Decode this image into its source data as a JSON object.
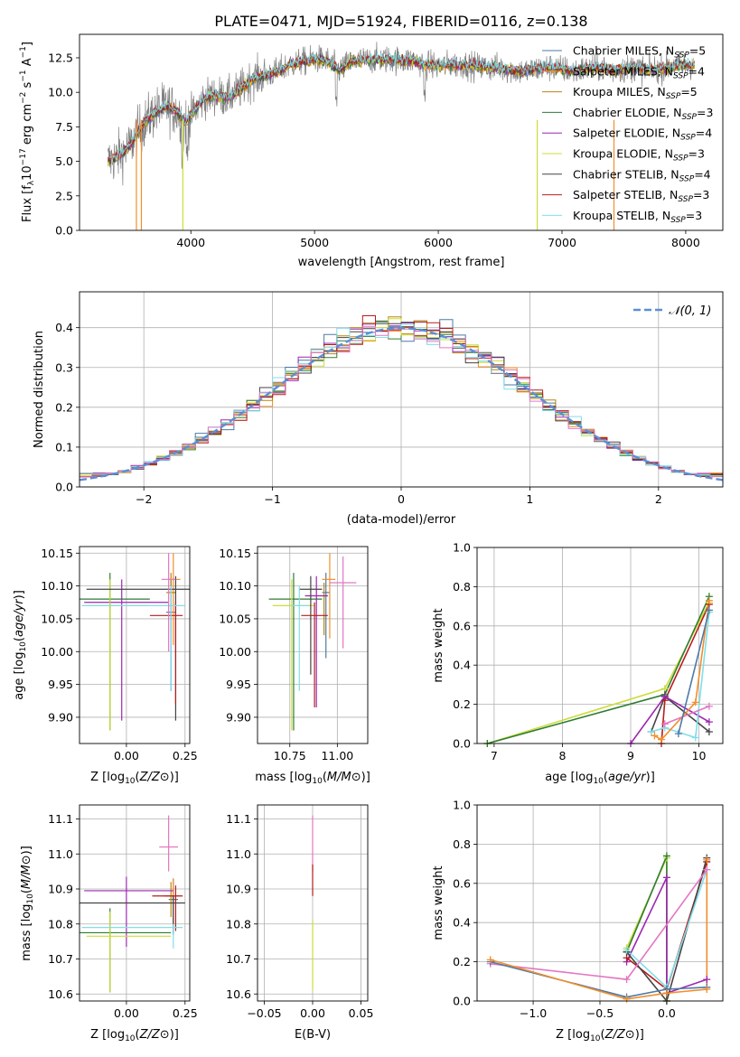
{
  "figure": {
    "title": "PLATE=0471, MJD=51924, FIBERID=0116, z=0.138"
  },
  "colors": {
    "Chabrier MILES": "#4e79a7",
    "Salpeter MILES": "#f28e2b",
    "Kroupa MILES": "#b8860b",
    "Chabrier ELODIE": "#2e7d32",
    "Salpeter ELODIE": "#9c27b0",
    "Kroupa ELODIE": "#cddc39",
    "Chabrier STELIB": "#444444",
    "Salpeter STELIB": "#b71c1c",
    "Kroupa STELIB": "#80deea",
    "data": "#808080",
    "gaussian": "#5b8fd6",
    "pink": "#e377c2",
    "grid": "#b0b0b0"
  },
  "chart_data": [
    {
      "id": "spectrum",
      "type": "line",
      "title": "PLATE=0471, MJD=51924, FIBERID=0116, z=0.138",
      "xlabel": "wavelength [Angstrom, rest frame]",
      "ylabel": "Flux [f_λ 10^-17 erg cm^-2 s^-1 A^-1]",
      "xlim": [
        3100,
        8300
      ],
      "ylim": [
        0,
        14.2
      ],
      "xticks": [
        "4000",
        "5000",
        "6000",
        "7000",
        "8000"
      ],
      "yticks": [
        "0.0",
        "2.5",
        "5.0",
        "7.5",
        "10.0",
        "12.5"
      ],
      "grid": false,
      "legend_placement": "top-right",
      "legend": [
        {
          "name": "Chabrier MILES",
          "sub": "5"
        },
        {
          "name": "Salpeter MILES",
          "sub": "4"
        },
        {
          "name": "Kroupa MILES",
          "sub": "5"
        },
        {
          "name": "Chabrier ELODIE",
          "sub": "3"
        },
        {
          "name": "Salpeter ELODIE",
          "sub": "4"
        },
        {
          "name": "Kroupa ELODIE",
          "sub": "3"
        },
        {
          "name": "Chabrier STELIB",
          "sub": "4"
        },
        {
          "name": "Salpeter STELIB",
          "sub": "3"
        },
        {
          "name": "Kroupa STELIB",
          "sub": "3"
        }
      ],
      "continuum": [
        [
          3330,
          5.0
        ],
        [
          3400,
          5.3
        ],
        [
          3500,
          6.0
        ],
        [
          3600,
          7.5
        ],
        [
          3700,
          8.5
        ],
        [
          3800,
          9.0
        ],
        [
          3900,
          8.5
        ],
        [
          3950,
          7.8
        ],
        [
          4000,
          8.3
        ],
        [
          4100,
          9.5
        ],
        [
          4200,
          9.8
        ],
        [
          4300,
          9.6
        ],
        [
          4400,
          10.2
        ],
        [
          4500,
          11.0
        ],
        [
          4600,
          11.2
        ],
        [
          4700,
          11.5
        ],
        [
          4800,
          12.0
        ],
        [
          4900,
          12.2
        ],
        [
          5000,
          12.4
        ],
        [
          5100,
          12.3
        ],
        [
          5200,
          11.6
        ],
        [
          5300,
          12.2
        ],
        [
          5400,
          12.3
        ],
        [
          5500,
          12.4
        ],
        [
          5600,
          12.4
        ],
        [
          5700,
          12.3
        ],
        [
          5800,
          12.3
        ],
        [
          5900,
          12.0
        ],
        [
          6000,
          11.9
        ],
        [
          6100,
          12.0
        ],
        [
          6200,
          12.0
        ],
        [
          6300,
          11.9
        ],
        [
          6400,
          11.8
        ],
        [
          6500,
          11.8
        ],
        [
          6600,
          11.6
        ],
        [
          6700,
          11.5
        ],
        [
          6800,
          11.7
        ],
        [
          6900,
          11.8
        ],
        [
          7000,
          11.7
        ],
        [
          7100,
          11.5
        ],
        [
          7200,
          11.7
        ],
        [
          7300,
          11.8
        ],
        [
          7400,
          11.6
        ],
        [
          7500,
          11.7
        ],
        [
          7600,
          11.8
        ],
        [
          7700,
          11.6
        ],
        [
          7800,
          11.7
        ],
        [
          7900,
          11.9
        ],
        [
          8000,
          12.0
        ],
        [
          8070,
          12.0
        ]
      ],
      "absorption_dips": [
        5175,
        3933,
        3968,
        5890
      ]
    },
    {
      "id": "residuals",
      "type": "line",
      "xlabel": "(data-model)/error",
      "ylabel": "Normed distribution",
      "xlim": [
        -2.5,
        2.5
      ],
      "ylim": [
        0,
        0.49
      ],
      "xticks": [
        "−2",
        "−1",
        "0",
        "1",
        "2"
      ],
      "yticks": [
        "0.0",
        "0.1",
        "0.2",
        "0.3",
        "0.4"
      ],
      "grid": true,
      "legend_placement": "top-right",
      "legend": [
        {
          "name": "N(0,1)"
        }
      ],
      "bin_width": 0.1,
      "bins_from": -2.5,
      "bins_to": 2.5
    },
    {
      "id": "age-vs-Z",
      "type": "scatter",
      "xlabel": "Z [log10(Z/Z⊙)]",
      "ylabel": "age [log10(age/yr)]",
      "xlim": [
        -0.2,
        0.27
      ],
      "ylim": [
        9.86,
        10.16
      ],
      "xticks": [
        "0.00",
        "0.25"
      ],
      "yticks": [
        "9.90",
        "9.95",
        "10.00",
        "10.05",
        "10.10",
        "10.15"
      ],
      "grid": true,
      "points": [
        {
          "series": "Chabrier MILES",
          "x": 0.19,
          "y": 10.06,
          "xerr": [
            0.02,
            0.02
          ],
          "yerr": [
            0.12,
            0.05
          ]
        },
        {
          "series": "Salpeter MILES",
          "x": 0.2,
          "y": 10.11,
          "xerr": [
            0.02,
            0.03
          ],
          "yerr": [
            0.1,
            0.04
          ]
        },
        {
          "series": "Kroupa MILES",
          "x": 0.19,
          "y": 10.09,
          "xerr": [
            0.02,
            0.02
          ],
          "yerr": [
            0.06,
            0.03
          ]
        },
        {
          "series": "Chabrier ELODIE",
          "x": -0.07,
          "y": 10.08,
          "xerr": [
            0.15,
            0.17
          ],
          "yerr": [
            0.2,
            0.04
          ]
        },
        {
          "series": "Salpeter ELODIE",
          "x": -0.02,
          "y": 10.075,
          "xerr": [
            0.16,
            0.2
          ],
          "yerr": [
            0.18,
            0.035
          ]
        },
        {
          "series": "Kroupa ELODIE",
          "x": -0.07,
          "y": 10.07,
          "xerr": [
            0.1,
            0.16
          ],
          "yerr": [
            0.19,
            0.04
          ]
        },
        {
          "series": "Chabrier STELIB",
          "x": 0.21,
          "y": 10.095,
          "xerr": [
            0.38,
            0.06
          ],
          "yerr": [
            0.2,
            0.02
          ]
        },
        {
          "series": "Salpeter STELIB",
          "x": 0.21,
          "y": 10.055,
          "xerr": [
            0.11,
            0.03
          ],
          "yerr": [
            0.135,
            0.02
          ]
        },
        {
          "series": "Kroupa STELIB",
          "x": 0.19,
          "y": 10.07,
          "xerr": [
            0.38,
            0.06
          ],
          "yerr": [
            0.13,
            0.03
          ]
        },
        {
          "series": "pink",
          "x": 0.18,
          "y": 10.11,
          "xerr": [
            0.03,
            0.03
          ],
          "yerr": [
            0.11,
            0.04
          ]
        }
      ]
    },
    {
      "id": "age-vs-mass",
      "type": "scatter",
      "xlabel": "mass [log10(M/M⊙)]",
      "ylabel": "",
      "xlim": [
        10.58,
        11.16
      ],
      "ylim": [
        9.86,
        10.16
      ],
      "xticks": [
        "10.75",
        "11.00"
      ],
      "yticks": [
        "9.90",
        "9.95",
        "10.00",
        "10.05",
        "10.10",
        "10.15"
      ],
      "grid": true,
      "points": [
        {
          "series": "Chabrier MILES",
          "x": 10.94,
          "y": 10.09,
          "xerr": [
            0.02,
            0.02
          ],
          "yerr": [
            0.1,
            0.03
          ]
        },
        {
          "series": "Salpeter MILES",
          "x": 10.96,
          "y": 10.11,
          "xerr": [
            0.04,
            0.03
          ],
          "yerr": [
            0.09,
            0.04
          ]
        },
        {
          "series": "Kroupa MILES",
          "x": 10.93,
          "y": 10.085,
          "xerr": [
            0.02,
            0.02
          ],
          "yerr": [
            0.06,
            0.02
          ]
        },
        {
          "series": "Chabrier ELODIE",
          "x": 10.77,
          "y": 10.08,
          "xerr": [
            0.13,
            0.15
          ],
          "yerr": [
            0.2,
            0.04
          ]
        },
        {
          "series": "Salpeter ELODIE",
          "x": 10.89,
          "y": 10.085,
          "xerr": [
            0.06,
            0.06
          ],
          "yerr": [
            0.17,
            0.03
          ]
        },
        {
          "series": "Kroupa ELODIE",
          "x": 10.76,
          "y": 10.07,
          "xerr": [
            0.1,
            0.12
          ],
          "yerr": [
            0.19,
            0.04
          ]
        },
        {
          "series": "Chabrier STELIB",
          "x": 10.86,
          "y": 10.095,
          "xerr": [
            0.06,
            0.06
          ],
          "yerr": [
            0.13,
            0.02
          ]
        },
        {
          "series": "Salpeter STELIB",
          "x": 10.88,
          "y": 10.055,
          "xerr": [
            0.07,
            0.07
          ],
          "yerr": [
            0.14,
            0.02
          ]
        },
        {
          "series": "Kroupa STELIB",
          "x": 10.8,
          "y": 10.07,
          "xerr": [
            0.04,
            0.05
          ],
          "yerr": [
            0.13,
            0.03
          ]
        },
        {
          "series": "pink",
          "x": 11.03,
          "y": 10.105,
          "xerr": [
            0.07,
            0.07
          ],
          "yerr": [
            0.1,
            0.04
          ]
        }
      ]
    },
    {
      "id": "mass-weight-vs-age",
      "type": "line",
      "xlabel": "age [log10(age/yr)]",
      "ylabel": "mass weight",
      "xlim": [
        6.75,
        10.35
      ],
      "ylim": [
        0,
        1.0
      ],
      "xticks": [
        "7",
        "8",
        "9",
        "10"
      ],
      "yticks": [
        "0.0",
        "0.2",
        "0.4",
        "0.6",
        "0.8",
        "1.0"
      ],
      "grid": true,
      "series": [
        {
          "name": "Kroupa ELODIE",
          "x": [
            6.9,
            9.5,
            10.15
          ],
          "y": [
            0.0,
            0.28,
            0.72
          ]
        },
        {
          "name": "Chabrier ELODIE",
          "x": [
            6.9,
            9.5,
            10.15
          ],
          "y": [
            0.0,
            0.25,
            0.75
          ]
        },
        {
          "name": "Salpeter STELIB",
          "x": [
            9.45,
            9.5,
            10.15
          ],
          "y": [
            0.0,
            0.22,
            0.71
          ]
        },
        {
          "name": "Chabrier STELIB",
          "x": [
            9.3,
            9.5,
            10.15
          ],
          "y": [
            0.06,
            0.24,
            0.06
          ]
        },
        {
          "name": "Salpeter ELODIE",
          "x": [
            9.0,
            9.5,
            10.15
          ],
          "y": [
            0.0,
            0.24,
            0.11
          ]
        },
        {
          "name": "Kroupa STELIB",
          "x": [
            9.3,
            9.5,
            9.95,
            10.15
          ],
          "y": [
            0.06,
            0.08,
            0.03,
            0.67
          ]
        },
        {
          "name": "Salpeter MILES",
          "x": [
            9.35,
            9.45,
            9.95,
            10.15
          ],
          "y": [
            0.04,
            0.02,
            0.21,
            0.73
          ]
        },
        {
          "name": "pink",
          "x": [
            9.5,
            10.15
          ],
          "y": [
            0.1,
            0.19
          ]
        },
        {
          "name": "Chabrier MILES",
          "x": [
            9.7,
            10.15
          ],
          "y": [
            0.05,
            0.68
          ]
        }
      ]
    },
    {
      "id": "mass-vs-Z",
      "type": "scatter",
      "xlabel": "Z [log10(Z/Z⊙)]",
      "ylabel": "mass [log10(M/M⊙)]",
      "xlim": [
        -0.2,
        0.27
      ],
      "ylim": [
        10.58,
        11.14
      ],
      "xticks": [
        "0.00",
        "0.25"
      ],
      "yticks": [
        "10.6",
        "10.7",
        "10.8",
        "10.9",
        "11.0",
        "11.1"
      ],
      "grid": true,
      "points": [
        {
          "series": "Chabrier MILES",
          "x": 0.2,
          "y": 10.87,
          "xerr": [
            0.02,
            0.02
          ],
          "yerr": [
            0.1,
            0.06
          ]
        },
        {
          "series": "Salpeter MILES",
          "x": 0.2,
          "y": 10.88,
          "xerr": [
            0.04,
            0.03
          ],
          "yerr": [
            0.09,
            0.05
          ]
        },
        {
          "series": "Kroupa MILES",
          "x": 0.19,
          "y": 10.88,
          "xerr": [
            0.02,
            0.02
          ],
          "yerr": [
            0.06,
            0.04
          ]
        },
        {
          "series": "Chabrier ELODIE",
          "x": -0.07,
          "y": 10.775,
          "xerr": [
            0.14,
            0.26
          ],
          "yerr": [
            0.17,
            0.07
          ]
        },
        {
          "series": "Salpeter ELODIE",
          "x": 0.0,
          "y": 10.895,
          "xerr": [
            0.18,
            0.2
          ],
          "yerr": [
            0.16,
            0.04
          ]
        },
        {
          "series": "Kroupa ELODIE",
          "x": -0.07,
          "y": 10.765,
          "xerr": [
            0.1,
            0.26
          ],
          "yerr": [
            0.16,
            0.07
          ]
        },
        {
          "series": "Chabrier STELIB",
          "x": 0.2,
          "y": 10.86,
          "xerr": [
            0.4,
            0.05
          ],
          "yerr": [
            0.09,
            0.02
          ]
        },
        {
          "series": "Salpeter STELIB",
          "x": 0.21,
          "y": 10.88,
          "xerr": [
            0.1,
            0.03
          ],
          "yerr": [
            0.1,
            0.03
          ]
        },
        {
          "series": "Kroupa STELIB",
          "x": 0.2,
          "y": 10.79,
          "xerr": [
            0.39,
            0.04
          ],
          "yerr": [
            0.06,
            0.01
          ]
        },
        {
          "series": "pink",
          "x": 0.18,
          "y": 11.02,
          "xerr": [
            0.04,
            0.04
          ],
          "yerr": [
            0.07,
            0.09
          ]
        }
      ]
    },
    {
      "id": "mass-vs-ebv",
      "type": "scatter",
      "xlabel": "E(B-V)",
      "ylabel": "",
      "xlim": [
        -0.057,
        0.057
      ],
      "ylim": [
        10.58,
        11.14
      ],
      "xticks": [
        "−0.05",
        "0.00",
        "0.05"
      ],
      "yticks": [
        "10.6",
        "10.7",
        "10.8",
        "10.9",
        "11.0",
        "11.1"
      ],
      "grid": true,
      "points": [
        {
          "series": "pink",
          "x": 0.0,
          "y": 11.02,
          "xerr": [
            0,
            0
          ],
          "yerr": [
            0.07,
            0.09
          ]
        },
        {
          "series": "Salpeter STELIB",
          "x": 0.0,
          "y": 10.9,
          "xerr": [
            0,
            0
          ],
          "yerr": [
            0.02,
            0.07
          ]
        },
        {
          "series": "Kroupa ELODIE",
          "x": 0.0,
          "y": 10.76,
          "xerr": [
            0,
            0
          ],
          "yerr": [
            0.15,
            0.05
          ]
        }
      ]
    },
    {
      "id": "mass-weight-vs-Z",
      "type": "line",
      "xlabel": "Z [log10(Z/Z⊙)]",
      "ylabel": "mass weight",
      "xlim": [
        -1.42,
        0.42
      ],
      "ylim": [
        0,
        1.0
      ],
      "xticks": [
        "−1.0",
        "−0.5",
        "0.0"
      ],
      "yticks": [
        "0.0",
        "0.2",
        "0.4",
        "0.6",
        "0.8",
        "1.0"
      ],
      "grid": true,
      "series": [
        {
          "name": "Kroupa ELODIE",
          "x": [
            -0.3,
            0.0,
            0.0
          ],
          "y": [
            0.27,
            0.73,
            0.0
          ]
        },
        {
          "name": "Chabrier ELODIE",
          "x": [
            -0.3,
            0.0,
            0.0
          ],
          "y": [
            0.25,
            0.74,
            0.0
          ]
        },
        {
          "name": "Salpeter ELODIE",
          "x": [
            -0.3,
            0.0,
            0.0,
            0.3
          ],
          "y": [
            0.2,
            0.63,
            0.04,
            0.11
          ]
        },
        {
          "name": "Salpeter STELIB",
          "x": [
            -0.3,
            0.0,
            0.3
          ],
          "y": [
            0.22,
            0.06,
            0.71
          ]
        },
        {
          "name": "Chabrier STELIB",
          "x": [
            -0.3,
            0.0,
            0.3
          ],
          "y": [
            0.25,
            0.0,
            0.73
          ]
        },
        {
          "name": "Kroupa STELIB",
          "x": [
            -0.3,
            0.0,
            0.3
          ],
          "y": [
            0.26,
            0.07,
            0.67
          ]
        },
        {
          "name": "pink",
          "x": [
            -1.32,
            -0.3,
            0.3
          ],
          "y": [
            0.19,
            0.11,
            0.67
          ]
        },
        {
          "name": "Chabrier MILES",
          "x": [
            -1.32,
            -0.3,
            0.0,
            0.3
          ],
          "y": [
            0.2,
            0.02,
            0.06,
            0.07
          ]
        },
        {
          "name": "Salpeter MILES",
          "x": [
            -1.32,
            -0.3,
            0.0,
            0.3,
            0.3
          ],
          "y": [
            0.21,
            0.01,
            0.04,
            0.06,
            0.72
          ]
        }
      ]
    }
  ]
}
